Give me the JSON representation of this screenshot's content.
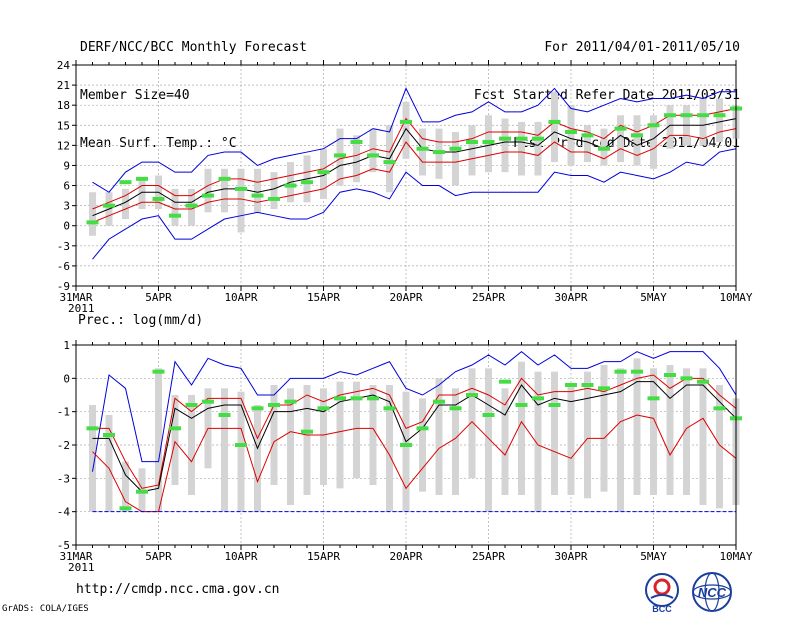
{
  "header": {
    "left": [
      "DERF/NCC/BCC Monthly Forecast",
      "Member Size=40",
      "Mean Surf. Temp.: °C"
    ],
    "right": [
      "For 2011/04/01-2011/05/10",
      "Fcst Started Refer Date 2011/03/31",
      "Fcst Produced Date 2011/04/01"
    ]
  },
  "footer": {
    "url": "http://cmdp.ncc.cma.gov.cn",
    "grads": "GrADS: COLA/IGES",
    "logo1": "BCC",
    "logo2": "NCC"
  },
  "colors": {
    "max_min": "#0000dd",
    "spread": "#dd0000",
    "mean": "#000000",
    "obs": "#44dd44",
    "box": "#d4d4d4",
    "grid": "#aaaaaa"
  },
  "chart_data": [
    {
      "type": "line",
      "title": "Mean Surf. Temp.: °C",
      "x_tick_labels": [
        "31MAR\n2011",
        "5APR",
        "10APR",
        "15APR",
        "20APR",
        "25APR",
        "30APR",
        "5MAY",
        "10MAY"
      ],
      "ylim": [
        -9,
        24
      ],
      "y_ticks": [
        -9,
        -6,
        -3,
        0,
        3,
        6,
        9,
        12,
        15,
        18,
        21,
        24
      ],
      "x": [
        1,
        2,
        3,
        4,
        5,
        6,
        7,
        8,
        9,
        10,
        11,
        12,
        13,
        14,
        15,
        16,
        17,
        18,
        19,
        20,
        21,
        22,
        23,
        24,
        25,
        26,
        27,
        28,
        29,
        30,
        31,
        32,
        33,
        34,
        35,
        36,
        37,
        38,
        39,
        40
      ],
      "series": [
        {
          "name": "max",
          "values": [
            6.5,
            5,
            8,
            9.5,
            9.5,
            8,
            8,
            10.5,
            11,
            11,
            9,
            10,
            10.5,
            11,
            11.5,
            13,
            13,
            14.5,
            14,
            20.5,
            15.5,
            15.5,
            16.5,
            17,
            18.5,
            17,
            17,
            18,
            20.5,
            17.5,
            17,
            18,
            19,
            18.5,
            19,
            19,
            19.5,
            19,
            20,
            20
          ]
        },
        {
          "name": "spread_high",
          "values": [
            2.5,
            3.5,
            4.5,
            6,
            6,
            4.5,
            4.5,
            6,
            7,
            7,
            6.5,
            7,
            7.5,
            8,
            8.5,
            10,
            10.5,
            11.5,
            11,
            16,
            13,
            12.5,
            12.5,
            13,
            14,
            14,
            14,
            13.5,
            15.5,
            14.5,
            14,
            13,
            15,
            14,
            15,
            16.5,
            16.5,
            16.5,
            17,
            17.5
          ]
        },
        {
          "name": "mean",
          "values": [
            1.5,
            2.5,
            3.5,
            5,
            5,
            3.5,
            3.5,
            5,
            5.5,
            5.5,
            5,
            5.5,
            6.5,
            7,
            7.5,
            9,
            9.5,
            10.5,
            10,
            14.5,
            11.5,
            11,
            11,
            11.5,
            12,
            12.5,
            12.5,
            12,
            14,
            13,
            12.5,
            11.5,
            13.5,
            12,
            13,
            15,
            15,
            15,
            15.5,
            16
          ]
        },
        {
          "name": "spread_low",
          "values": [
            0.5,
            1.5,
            2.5,
            3.5,
            3.5,
            2.5,
            2.5,
            3.5,
            4,
            4,
            3.5,
            4,
            4.5,
            5,
            5.5,
            7,
            7.5,
            8.5,
            8,
            12.5,
            9.5,
            9.5,
            9.5,
            10,
            10.5,
            11,
            11,
            10.5,
            12.5,
            11,
            11,
            10,
            11.5,
            10.5,
            11.5,
            13.5,
            13.5,
            13,
            14,
            14.5
          ]
        },
        {
          "name": "min",
          "values": [
            -5,
            -2,
            -0.5,
            1,
            1.5,
            -2,
            -2,
            -0.5,
            1,
            1.5,
            2,
            1.5,
            1,
            1,
            2,
            5,
            5.5,
            5,
            4,
            8,
            6,
            6,
            4.5,
            5,
            5,
            5,
            5,
            5,
            8,
            7.5,
            7.5,
            6.5,
            8,
            7.5,
            7,
            8,
            9.5,
            9,
            11,
            11.5
          ]
        },
        {
          "name": "obs",
          "values": [
            0.5,
            3,
            6.5,
            7,
            4,
            1.5,
            3,
            4.5,
            7,
            5.5,
            4.5,
            4,
            6,
            6.5,
            8,
            10.5,
            12.5,
            10.5,
            9.5,
            15.5,
            11.5,
            11,
            11.5,
            12.5,
            12.5,
            13,
            13,
            13,
            15.5,
            14,
            13.5,
            11.5,
            14.5,
            13.5,
            15,
            16.5,
            16.5,
            16.5,
            16.5,
            17.5
          ]
        }
      ],
      "box_high": [
        5,
        5,
        5.5,
        7,
        7.5,
        5.5,
        5.5,
        8.5,
        8.5,
        8.5,
        8.5,
        8,
        9.5,
        10.5,
        11.5,
        14.5,
        13.5,
        14.5,
        15,
        18.5,
        14.5,
        14.5,
        14,
        15,
        16.5,
        16,
        15.5,
        15.5,
        20,
        18,
        15,
        14.5,
        16.5,
        16.5,
        16.5,
        18,
        18,
        19,
        19,
        18
      ],
      "box_low": [
        -1.5,
        0,
        1,
        2.5,
        2.5,
        0,
        0,
        2,
        2,
        -1,
        2,
        2.5,
        3.5,
        3.5,
        4,
        6,
        6.5,
        8,
        5,
        10,
        7.5,
        7,
        6,
        7.5,
        8,
        8,
        7.5,
        7.5,
        9.5,
        9,
        9.5,
        9,
        9.5,
        9,
        8.5,
        11.5,
        12,
        12,
        12.5,
        13
      ]
    },
    {
      "type": "line",
      "title": "Prec.: log(mm/d)",
      "x_tick_labels": [
        "31MAR\n2011",
        "5APR",
        "10APR",
        "15APR",
        "20APR",
        "25APR",
        "30APR",
        "5MAY",
        "10MAY"
      ],
      "ylim": [
        -5,
        1
      ],
      "y_ticks": [
        -5,
        -4,
        -3,
        -2,
        -1,
        0,
        1
      ],
      "x": [
        1,
        2,
        3,
        4,
        5,
        6,
        7,
        8,
        9,
        10,
        11,
        12,
        13,
        14,
        15,
        16,
        17,
        18,
        19,
        20,
        21,
        22,
        23,
        24,
        25,
        26,
        27,
        28,
        29,
        30,
        31,
        32,
        33,
        34,
        35,
        36,
        37,
        38,
        39,
        40
      ],
      "series": [
        {
          "name": "max",
          "values": [
            -2.8,
            0.1,
            -0.3,
            -2.5,
            -2.5,
            0.5,
            -0.2,
            0.6,
            0.4,
            0.3,
            -0.5,
            -0.5,
            0,
            0,
            0,
            0.2,
            0.1,
            0.3,
            0.5,
            -0.3,
            -0.5,
            -0.2,
            0.2,
            0.4,
            0.7,
            0.4,
            0.8,
            0.4,
            0.7,
            0.3,
            0.3,
            0.5,
            0.5,
            0.8,
            0.6,
            0.8,
            0.8,
            0.8,
            0.3,
            -0.5
          ]
        },
        {
          "name": "spread_high",
          "values": [
            -1.5,
            -1.5,
            -2.5,
            -3.3,
            -3.2,
            -0.6,
            -1,
            -0.6,
            -0.6,
            -0.6,
            -1.8,
            -0.8,
            -0.8,
            -0.5,
            -0.7,
            -0.5,
            -0.4,
            -0.3,
            -0.5,
            -1.5,
            -1.3,
            -0.5,
            -0.5,
            -0.3,
            -0.5,
            -0.8,
            0,
            -0.5,
            -0.4,
            -0.4,
            -0.3,
            -0.4,
            -0.2,
            0,
            0.1,
            -0.3,
            0,
            0,
            -0.5,
            -0.9
          ]
        },
        {
          "name": "mean",
          "values": [
            -1.8,
            -1.8,
            -2.9,
            -3.4,
            -3.3,
            -0.9,
            -1.2,
            -0.9,
            -0.8,
            -0.8,
            -2.1,
            -1,
            -1,
            -0.9,
            -1,
            -0.7,
            -0.6,
            -0.5,
            -0.7,
            -1.9,
            -1.5,
            -0.8,
            -0.8,
            -0.5,
            -0.8,
            -1.1,
            -0.2,
            -0.8,
            -0.6,
            -0.7,
            -0.6,
            -0.5,
            -0.4,
            -0.1,
            -0.1,
            -0.6,
            -0.2,
            -0.2,
            -0.7,
            -1.2
          ]
        },
        {
          "name": "spread_low",
          "values": [
            -2.2,
            -2.7,
            -3.7,
            -4,
            -4,
            -1.9,
            -2.5,
            -1.5,
            -1.5,
            -1.5,
            -3.1,
            -1.9,
            -1.6,
            -1.7,
            -1.7,
            -1.6,
            -1.5,
            -1.5,
            -2.3,
            -3.3,
            -2.7,
            -2.1,
            -1.8,
            -1.3,
            -1.8,
            -2.3,
            -1.3,
            -2,
            -2.2,
            -2.4,
            -1.8,
            -1.8,
            -1.3,
            -1.1,
            -1.2,
            -2.3,
            -1.5,
            -1.2,
            -2,
            -2.4
          ]
        },
        {
          "name": "min",
          "values": [
            -4,
            -4,
            -4,
            -4,
            -4,
            -4,
            -4,
            -4,
            -4,
            -4,
            -4,
            -4,
            -4,
            -4,
            -4,
            -4,
            -4,
            -4,
            -4,
            -4,
            -4,
            -4,
            -4,
            -4,
            -4,
            -4,
            -4,
            -4,
            -4,
            -4,
            -4,
            -4,
            -4,
            -4,
            -4,
            -4,
            -4,
            -4,
            -4,
            -4
          ]
        },
        {
          "name": "obs",
          "values": [
            -1.5,
            -1.7,
            -3.9,
            -3.4,
            0.2,
            -1.5,
            -0.8,
            -0.7,
            -1.1,
            -2,
            -0.9,
            -0.8,
            -0.7,
            -1.6,
            -0.9,
            -0.6,
            -0.6,
            -0.6,
            -0.9,
            -2,
            -1.5,
            -0.7,
            -0.9,
            -0.5,
            -1.1,
            -0.1,
            -0.8,
            -0.6,
            -0.8,
            -0.2,
            -0.2,
            -0.3,
            0.2,
            0.2,
            -0.6,
            0.1,
            0,
            -0.1,
            -0.9,
            -1.2
          ]
        }
      ],
      "box_high": [
        -0.8,
        -1.1,
        -2.5,
        -2.7,
        0.3,
        -0.5,
        -0.5,
        -0.3,
        -0.3,
        -0.4,
        -0.8,
        -0.2,
        -0.3,
        -0.2,
        -0.3,
        -0.1,
        -0.1,
        -0.2,
        -0.2,
        -0.4,
        -0.6,
        0,
        -0.3,
        0.3,
        0.3,
        -0.3,
        0.5,
        0.2,
        0.2,
        -0.2,
        0.2,
        0.4,
        0.3,
        0.6,
        0.3,
        0.4,
        0.3,
        0.3,
        -0.2,
        -0.6
      ],
      "box_low": [
        -4,
        -4,
        -4,
        -4,
        -4,
        -3.2,
        -3.5,
        -2.7,
        -4,
        -4,
        -4,
        -3.2,
        -3.8,
        -3.5,
        -3.2,
        -3.3,
        -3,
        -3.2,
        -4,
        -4,
        -3.4,
        -3.5,
        -3.5,
        -3,
        -4,
        -3.5,
        -3.5,
        -4,
        -3.5,
        -3.5,
        -3.6,
        -3.4,
        -4,
        -3.5,
        -3.5,
        -3.5,
        -3.5,
        -3.8,
        -3.9,
        -3.8
      ]
    }
  ]
}
